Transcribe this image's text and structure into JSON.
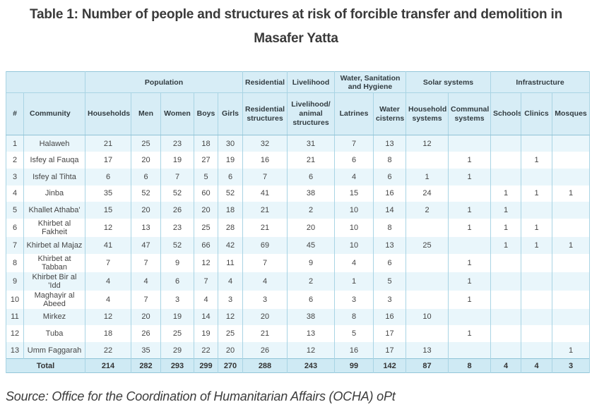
{
  "title": "Table 1: Number of people and structures at risk of forcible transfer and demolition in Masafer Yatta",
  "source": "Source: Office for the Coordination of Humanitarian Affairs (OCHA) oPt",
  "colors": {
    "header_bg": "#d7edf6",
    "stripe_bg": "#e9f6fb",
    "total_bg": "#cfeaf4",
    "border": "#a9d4e4"
  },
  "chart_data": {
    "type": "table",
    "title": "Table 1: Number of people and structures at risk of forcible transfer and demolition in Masafer Yatta",
    "group_headers": [
      {
        "label": "",
        "span": 2
      },
      {
        "label": "Population",
        "span": 5
      },
      {
        "label": "Residential",
        "span": 1
      },
      {
        "label": "Livelihood",
        "span": 1
      },
      {
        "label": "Water, Sanitation and Hygiene",
        "span": 2
      },
      {
        "label": "Solar systems",
        "span": 2
      },
      {
        "label": "Infrastructure",
        "span": 3
      }
    ],
    "columns": [
      "#",
      "Community",
      "Households",
      "Men",
      "Women",
      "Boys",
      "Girls",
      "Residential structures",
      "Livelihood/ animal structures",
      "Latrines",
      "Water cisterns",
      "Household systems",
      "Communal systems",
      "Schools",
      "Clinics",
      "Mosques"
    ],
    "rows": [
      [
        "1",
        "Halaweh",
        "21",
        "25",
        "23",
        "18",
        "30",
        "32",
        "31",
        "7",
        "13",
        "12",
        "",
        "",
        "",
        ""
      ],
      [
        "2",
        "Isfey al Fauqa",
        "17",
        "20",
        "19",
        "27",
        "19",
        "16",
        "21",
        "6",
        "8",
        "",
        "1",
        "",
        "1",
        ""
      ],
      [
        "3",
        "Isfey al Tihta",
        "6",
        "6",
        "7",
        "5",
        "6",
        "7",
        "6",
        "4",
        "6",
        "1",
        "1",
        "",
        "",
        ""
      ],
      [
        "4",
        "Jinba",
        "35",
        "52",
        "52",
        "60",
        "52",
        "41",
        "38",
        "15",
        "16",
        "24",
        "",
        "1",
        "1",
        "1"
      ],
      [
        "5",
        "Khallet Athaba'",
        "15",
        "20",
        "26",
        "20",
        "18",
        "21",
        "2",
        "10",
        "14",
        "2",
        "1",
        "1",
        "",
        ""
      ],
      [
        "6",
        "Khirbet al Fakheit",
        "12",
        "13",
        "23",
        "25",
        "28",
        "21",
        "20",
        "10",
        "8",
        "",
        "1",
        "1",
        "1",
        ""
      ],
      [
        "7",
        "Khirbet al Majaz",
        "41",
        "47",
        "52",
        "66",
        "42",
        "69",
        "45",
        "10",
        "13",
        "25",
        "",
        "1",
        "1",
        "1"
      ],
      [
        "8",
        "Khirbet at Tabban",
        "7",
        "7",
        "9",
        "12",
        "11",
        "7",
        "9",
        "4",
        "6",
        "",
        "1",
        "",
        "",
        ""
      ],
      [
        "9",
        "Khirbet Bir al 'Idd",
        "4",
        "4",
        "6",
        "7",
        "4",
        "4",
        "2",
        "1",
        "5",
        "",
        "1",
        "",
        "",
        ""
      ],
      [
        "10",
        "Maghayir al Abeed",
        "4",
        "7",
        "3",
        "4",
        "3",
        "3",
        "6",
        "3",
        "3",
        "",
        "1",
        "",
        "",
        ""
      ],
      [
        "11",
        "Mirkez",
        "12",
        "20",
        "19",
        "14",
        "12",
        "20",
        "38",
        "8",
        "16",
        "10",
        "",
        "",
        "",
        ""
      ],
      [
        "12",
        "Tuba",
        "18",
        "26",
        "25",
        "19",
        "25",
        "21",
        "13",
        "5",
        "17",
        "",
        "1",
        "",
        "",
        ""
      ],
      [
        "13",
        "Umm Faggarah",
        "22",
        "35",
        "29",
        "22",
        "20",
        "26",
        "12",
        "16",
        "17",
        "13",
        "",
        "",
        "",
        "1"
      ]
    ],
    "total": {
      "label": "Total",
      "values": [
        "214",
        "282",
        "293",
        "299",
        "270",
        "288",
        "243",
        "99",
        "142",
        "87",
        "8",
        "4",
        "4",
        "3"
      ]
    }
  }
}
